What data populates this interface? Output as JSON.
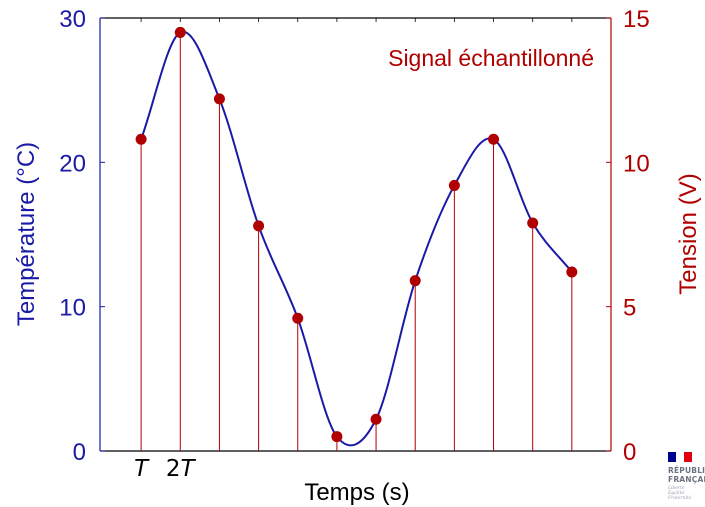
{
  "chart_data": {
    "type": "line",
    "annotation": "Signal échantillonné",
    "xlabel": "Temps (s)",
    "x_ticks": [
      "T",
      "2T"
    ],
    "y_left": {
      "label": "Température (°C)",
      "ticks": [
        0,
        10,
        20,
        30
      ],
      "range": [
        0,
        30
      ]
    },
    "y_right": {
      "label": "Tension (V)",
      "ticks": [
        0,
        5,
        10,
        15
      ],
      "range": [
        0,
        15
      ]
    },
    "samples_x": [
      1,
      2,
      3,
      4,
      5,
      6,
      7,
      8,
      9,
      10,
      11,
      12
    ],
    "samples_voltage": [
      10.8,
      14.5,
      12.2,
      7.8,
      4.6,
      0.5,
      1.1,
      5.9,
      9.2,
      10.8,
      7.9,
      6.2
    ],
    "x_range": [
      -0.05,
      13
    ],
    "colors": {
      "continuous": "#1a1aa6",
      "samples": "#b00000"
    }
  },
  "logo": {
    "text": "RÉPUBLIQUE\nFRANÇAISE",
    "motto": "Liberté\nÉgalité\nFraternité",
    "colors": [
      "#000091",
      "#ffffff",
      "#e1000f"
    ]
  }
}
